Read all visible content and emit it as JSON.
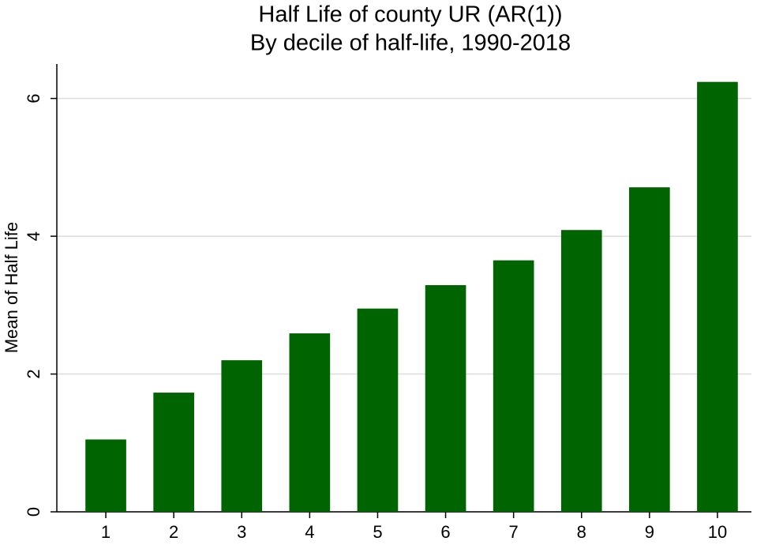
{
  "chart_data": {
    "type": "bar",
    "title": "Half Life of county UR (AR(1))",
    "subtitle": "By decile of half-life, 1990-2018",
    "y_label": "Mean of Half Life",
    "categories": [
      "1",
      "2",
      "3",
      "4",
      "5",
      "6",
      "7",
      "8",
      "9",
      "10"
    ],
    "values": [
      1.05,
      1.73,
      2.2,
      2.59,
      2.95,
      3.29,
      3.65,
      4.09,
      4.71,
      6.24
    ],
    "color": "#006400",
    "ylim": [
      0,
      6.5
    ],
    "yticks": [
      0,
      2,
      4,
      6
    ],
    "grid": true
  }
}
